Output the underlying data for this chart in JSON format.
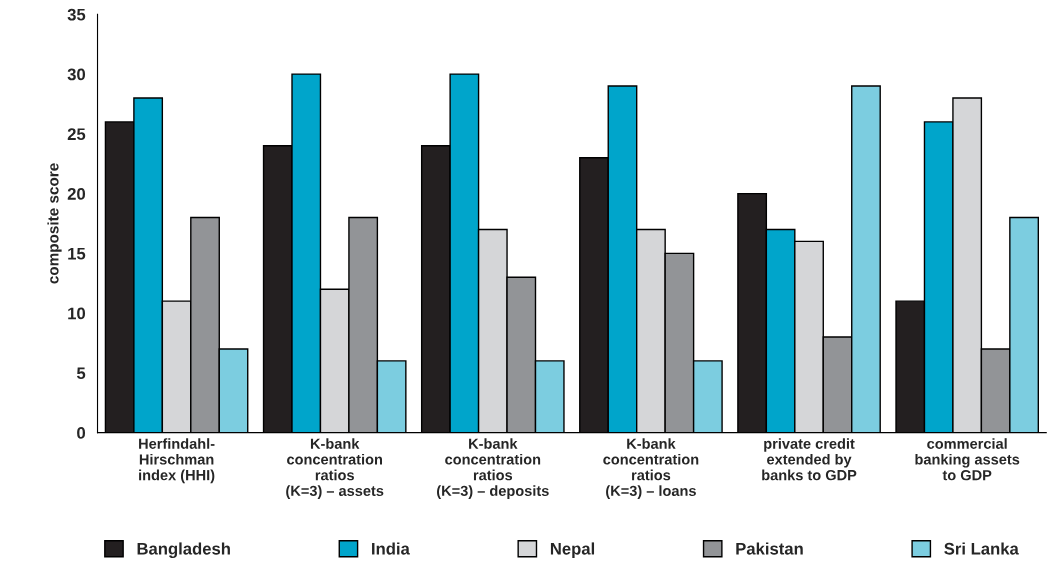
{
  "chart_data": {
    "type": "bar",
    "ylabel": "composite score",
    "categories": [
      "Herfindahl-\nHirschman\nindex (HHI)",
      "K-bank\nconcentration\nratios\n(K=3) – assets",
      "K-bank\nconcentration\nratios\n(K=3) – deposits",
      "K-bank\nconcentration\nratios\n(K=3) – loans",
      "private credit\nextended by\nbanks to GDP",
      "commercial\nbanking assets\nto GDP"
    ],
    "series": [
      {
        "name": "Bangladesh",
        "color": "#231f20",
        "values": [
          26,
          24,
          24,
          23,
          20,
          11
        ]
      },
      {
        "name": "India",
        "color": "#00a5cb",
        "values": [
          28,
          30,
          30,
          29,
          17,
          26
        ]
      },
      {
        "name": "Nepal",
        "color": "#d5d6d8",
        "values": [
          11,
          12,
          17,
          17,
          16,
          28
        ]
      },
      {
        "name": "Pakistan",
        "color": "#929497",
        "values": [
          18,
          18,
          13,
          15,
          8,
          7
        ]
      },
      {
        "name": "Sri Lanka",
        "color": "#7ccde0",
        "values": [
          7,
          6,
          6,
          6,
          29,
          18
        ]
      }
    ],
    "ylim": [
      0,
      35
    ],
    "yticks": [
      0,
      5,
      10,
      15,
      20,
      25,
      30,
      35
    ],
    "grid": false,
    "legend": "bottom"
  }
}
